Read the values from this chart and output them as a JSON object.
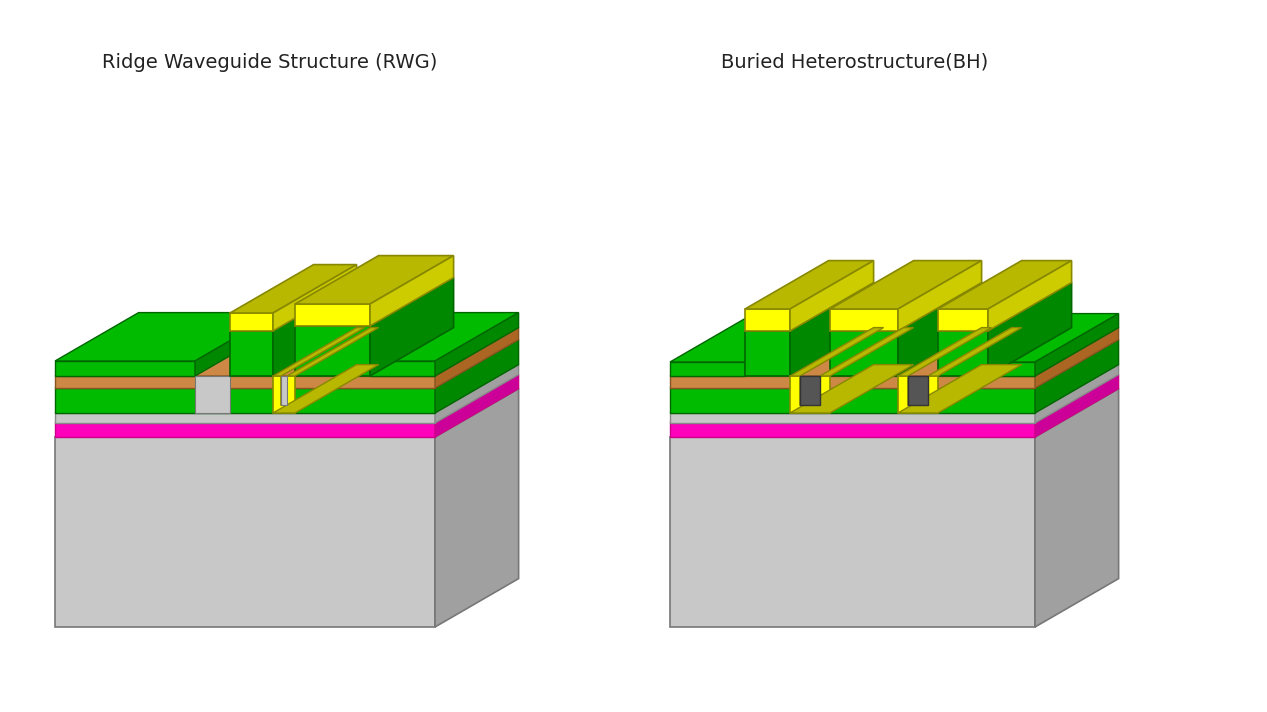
{
  "title_left": "Ridge Waveguide Structure (RWG)",
  "title_right": "Buried Heterostructure(BH)",
  "title_fontsize": 14,
  "background_color": "#ffffff",
  "colors": {
    "gray_light": "#b0b0b0",
    "gray_dark": "#909090",
    "gray_side": "#a0a0a0",
    "gray_front": "#c8c8c8",
    "gray_top": "#d0d0d0",
    "green_bright": "#00bb00",
    "green_dark": "#008800",
    "green_side": "#006600",
    "yellow_bright": "#ffff00",
    "yellow_dark": "#cccc00",
    "yellow_olive": "#b8b800",
    "yellow_top": "#d4d400",
    "brown": "#cc8844",
    "brown_dark": "#aa6622",
    "magenta": "#ff00bb",
    "magenta_dark": "#cc0099",
    "dark_gray": "#555555",
    "dark_gray2": "#444444"
  }
}
